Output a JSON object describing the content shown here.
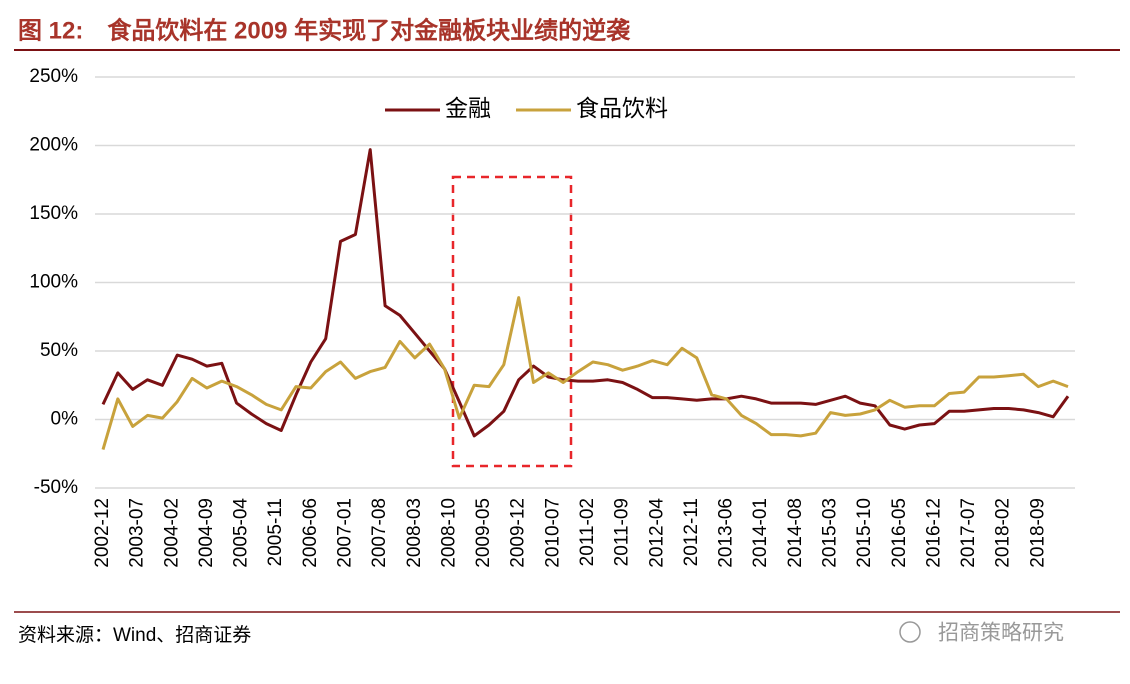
{
  "title": "图 12:　食品饮料在 2009 年实现了对金融板块业绩的逆袭",
  "source": "资料来源：Wind、招商证券",
  "watermark": "招商策略研究",
  "chart_data": {
    "type": "line",
    "legend": "top",
    "x": [
      "2002-12",
      "2003-03",
      "2003-06",
      "2003-09",
      "2003-12",
      "2004-03",
      "2004-06",
      "2004-09",
      "2004-12",
      "2005-03",
      "2005-06",
      "2005-09",
      "2005-12",
      "2006-03",
      "2006-06",
      "2006-09",
      "2006-12",
      "2007-03",
      "2007-06",
      "2007-09",
      "2007-12",
      "2008-03",
      "2008-06",
      "2008-09",
      "2008-12",
      "2009-03",
      "2009-06",
      "2009-09",
      "2009-12",
      "2010-03",
      "2010-06",
      "2010-09",
      "2010-12",
      "2011-03",
      "2011-06",
      "2011-09",
      "2011-12",
      "2012-03",
      "2012-06",
      "2012-09",
      "2012-12",
      "2013-03",
      "2013-06",
      "2013-09",
      "2013-12",
      "2014-03",
      "2014-06",
      "2014-09",
      "2014-12",
      "2015-03",
      "2015-06",
      "2015-09",
      "2015-12",
      "2016-03",
      "2016-06",
      "2016-09",
      "2016-12",
      "2017-03",
      "2017-06",
      "2017-09",
      "2017-12",
      "2018-03",
      "2018-06",
      "2018-09",
      "2018-12",
      "2019-03"
    ],
    "xticks": [
      "2002-12",
      "2003-07",
      "2004-02",
      "2004-09",
      "2005-04",
      "2005-11",
      "2006-06",
      "2007-01",
      "2007-08",
      "2008-03",
      "2008-10",
      "2009-05",
      "2009-12",
      "2010-07",
      "2011-02",
      "2011-09",
      "2012-04",
      "2012-11",
      "2013-06",
      "2014-01",
      "2014-08",
      "2015-03",
      "2015-10",
      "2016-05",
      "2016-12",
      "2017-07",
      "2018-02",
      "2018-09"
    ],
    "series": [
      {
        "name": "金融",
        "color": "#7b1113",
        "values": [
          11,
          34,
          22,
          29,
          25,
          47,
          44,
          39,
          41,
          12,
          4,
          -3,
          -8,
          18,
          42,
          59,
          130,
          135,
          197,
          83,
          76,
          63,
          50,
          37,
          13,
          -12,
          -4,
          6,
          29,
          39,
          31,
          29,
          28,
          28,
          29,
          27,
          22,
          16,
          16,
          15,
          14,
          15,
          15,
          17,
          15,
          12,
          12,
          12,
          11,
          14,
          17,
          12,
          10,
          -4,
          -7,
          -4,
          -3,
          6,
          6,
          7,
          8,
          8,
          7,
          5,
          2,
          17
        ]
      },
      {
        "name": "食品饮料",
        "color": "#c8a23c",
        "values": [
          -22,
          15,
          -5,
          3,
          1,
          13,
          30,
          23,
          28,
          24,
          18,
          11,
          7,
          24,
          23,
          35,
          42,
          30,
          35,
          38,
          57,
          45,
          55,
          37,
          1,
          25,
          24,
          40,
          89,
          27,
          34,
          27,
          35,
          42,
          40,
          36,
          39,
          43,
          40,
          52,
          45,
          18,
          15,
          3,
          -3,
          -11,
          -11,
          -12,
          -10,
          5,
          3,
          4,
          7,
          14,
          9,
          10,
          10,
          19,
          20,
          31,
          31,
          32,
          33,
          24,
          28,
          24
        ]
      }
    ],
    "ylim": [
      -50,
      250
    ],
    "yticks": [
      {
        "value": -50,
        "label": "-50%"
      },
      {
        "value": 0,
        "label": "0%"
      },
      {
        "value": 50,
        "label": "50%"
      },
      {
        "value": 100,
        "label": "100%"
      },
      {
        "value": 150,
        "label": "150%"
      },
      {
        "value": 200,
        "label": "200%"
      },
      {
        "value": 250,
        "label": "250%"
      }
    ],
    "grid": true
  }
}
